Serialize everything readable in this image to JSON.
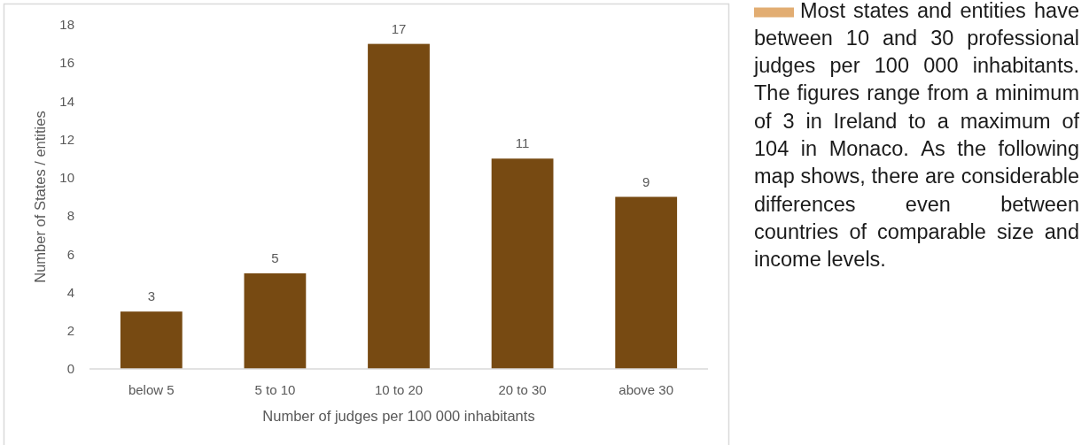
{
  "chart_data": {
    "type": "bar",
    "categories": [
      "below 5",
      "5 to 10",
      "10 to 20",
      "20 to 30",
      "above 30"
    ],
    "values": [
      3,
      5,
      17,
      11,
      9
    ],
    "color": "#774a12",
    "xlabel": "Number of judges per 100 000 inhabitants",
    "ylabel": "Number of States / entities",
    "ylim": [
      0,
      18
    ],
    "yticks": [
      0,
      2,
      4,
      6,
      8,
      10,
      12,
      14,
      16,
      18
    ],
    "data_labels": true,
    "annotations": [
      "Most states and entities have between 10 and 30 professional judges per 100 000 inhabitants. The figures range from a minimum of 3 in Ireland to a maximum of 104 in Monaco. As the following map shows, there are considerable differences even between countries of comparable size and income levels."
    ]
  }
}
